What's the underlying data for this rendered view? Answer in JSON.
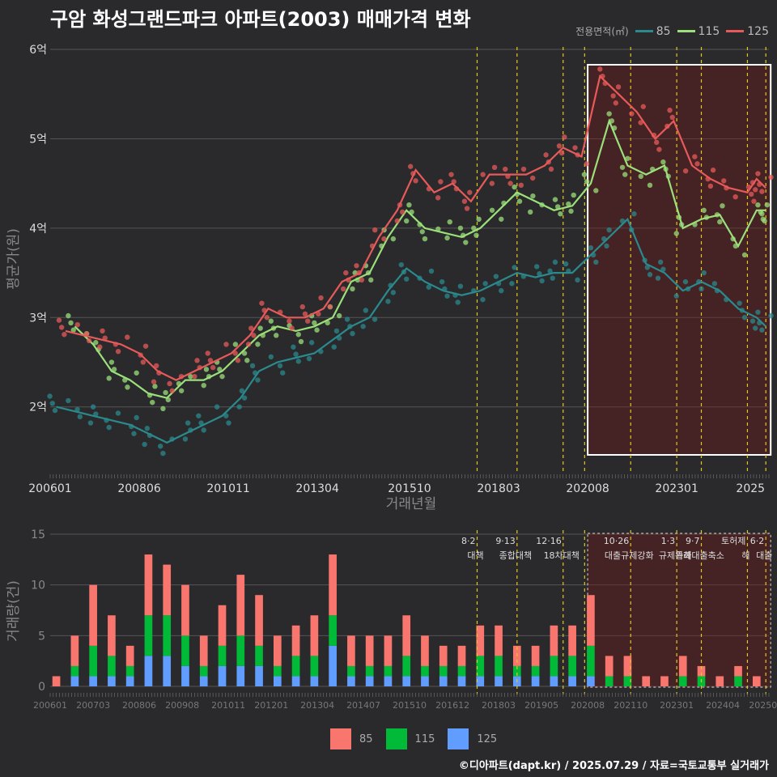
{
  "title": "구암 화성그랜드파크 아파트(2003) 매매가격 변화",
  "footer": "©디아파트(dapt.kr) / 2025.07.29 / 자료=국토교통부 실거래가",
  "colors": {
    "c85": "#2a8a8e",
    "c115": "#9be07a",
    "c125": "#e85a5a",
    "b85": "#f8766d",
    "b115": "#00ba38",
    "b125": "#619cff",
    "policy": "#e6c619",
    "bg": "#2a2a2c",
    "grid": "#555555"
  },
  "legend_top": {
    "label": "전용면적(㎡)",
    "items": [
      "85",
      "115",
      "125"
    ]
  },
  "legend_bottom": {
    "items": [
      "85",
      "115",
      "125"
    ]
  },
  "chart_data": [
    {
      "type": "line",
      "title": "",
      "xlabel": "거래년월",
      "ylabel": "평균가(원)",
      "x_ticks": [
        "200601",
        "200806",
        "201011",
        "201304",
        "201510",
        "201803",
        "202008",
        "202301",
        "2025"
      ],
      "y_ticks": [
        "2억",
        "3억",
        "4억",
        "5억",
        "6억"
      ],
      "ylim": [
        1.3,
        6.1
      ],
      "highlight_range": [
        "202008",
        "202506"
      ],
      "series": [
        {
          "name": "85",
          "points": [
            [
              "2006-03",
              2.0
            ],
            [
              "2006-09",
              1.95
            ],
            [
              "2007-03",
              1.9
            ],
            [
              "2007-09",
              1.85
            ],
            [
              "2008-03",
              1.8
            ],
            [
              "2008-09",
              1.7
            ],
            [
              "2009-03",
              1.6
            ],
            [
              "2009-09",
              1.7
            ],
            [
              "2010-03",
              1.8
            ],
            [
              "2010-09",
              1.9
            ],
            [
              "2011-03",
              2.1
            ],
            [
              "2011-09",
              2.4
            ],
            [
              "2012-03",
              2.5
            ],
            [
              "2012-09",
              2.55
            ],
            [
              "2013-03",
              2.6
            ],
            [
              "2013-09",
              2.75
            ],
            [
              "2014-03",
              2.9
            ],
            [
              "2014-09",
              3.0
            ],
            [
              "2015-03",
              3.3
            ],
            [
              "2015-09",
              3.55
            ],
            [
              "2016-03",
              3.4
            ],
            [
              "2016-09",
              3.3
            ],
            [
              "2017-03",
              3.25
            ],
            [
              "2017-09",
              3.3
            ],
            [
              "2018-03",
              3.4
            ],
            [
              "2018-09",
              3.5
            ],
            [
              "2019-03",
              3.45
            ],
            [
              "2019-09",
              3.5
            ],
            [
              "2020-03",
              3.5
            ],
            [
              "2020-09",
              3.7
            ],
            [
              "2021-03",
              3.9
            ],
            [
              "2021-09",
              4.1
            ],
            [
              "2022-03",
              3.6
            ],
            [
              "2022-09",
              3.5
            ],
            [
              "2023-03",
              3.3
            ],
            [
              "2023-09",
              3.4
            ],
            [
              "2024-03",
              3.3
            ],
            [
              "2024-09",
              3.1
            ],
            [
              "2025-03",
              3.0
            ],
            [
              "2025-06",
              2.9
            ]
          ]
        },
        {
          "name": "115",
          "points": [
            [
              "2006-09",
              2.9
            ],
            [
              "2007-03",
              2.7
            ],
            [
              "2007-09",
              2.4
            ],
            [
              "2008-03",
              2.3
            ],
            [
              "2008-09",
              2.15
            ],
            [
              "2009-03",
              2.1
            ],
            [
              "2009-09",
              2.3
            ],
            [
              "2010-03",
              2.3
            ],
            [
              "2010-09",
              2.4
            ],
            [
              "2011-03",
              2.6
            ],
            [
              "2011-09",
              2.8
            ],
            [
              "2012-03",
              2.9
            ],
            [
              "2012-09",
              2.85
            ],
            [
              "2013-03",
              2.9
            ],
            [
              "2013-09",
              3.0
            ],
            [
              "2014-03",
              3.4
            ],
            [
              "2014-09",
              3.5
            ],
            [
              "2015-03",
              3.9
            ],
            [
              "2015-09",
              4.2
            ],
            [
              "2016-03",
              4.0
            ],
            [
              "2016-09",
              3.95
            ],
            [
              "2017-03",
              3.9
            ],
            [
              "2017-09",
              4.0
            ],
            [
              "2018-03",
              4.2
            ],
            [
              "2018-09",
              4.4
            ],
            [
              "2019-03",
              4.3
            ],
            [
              "2019-09",
              4.2
            ],
            [
              "2020-03",
              4.25
            ],
            [
              "2020-09",
              4.5
            ],
            [
              "2021-03",
              5.2
            ],
            [
              "2021-09",
              4.7
            ],
            [
              "2022-03",
              4.6
            ],
            [
              "2022-09",
              4.7
            ],
            [
              "2023-03",
              4.0
            ],
            [
              "2023-09",
              4.1
            ],
            [
              "2024-03",
              4.15
            ],
            [
              "2024-09",
              3.8
            ],
            [
              "2025-03",
              4.2
            ],
            [
              "2025-06",
              4.2
            ]
          ]
        },
        {
          "name": "125",
          "points": [
            [
              "2006-06",
              2.85
            ],
            [
              "2006-12",
              2.8
            ],
            [
              "2007-06",
              2.75
            ],
            [
              "2007-12",
              2.7
            ],
            [
              "2008-06",
              2.6
            ],
            [
              "2008-12",
              2.4
            ],
            [
              "2009-06",
              2.3
            ],
            [
              "2009-12",
              2.4
            ],
            [
              "2010-06",
              2.5
            ],
            [
              "2010-12",
              2.6
            ],
            [
              "2011-06",
              2.8
            ],
            [
              "2011-12",
              3.1
            ],
            [
              "2012-06",
              3.0
            ],
            [
              "2012-12",
              3.0
            ],
            [
              "2013-06",
              3.1
            ],
            [
              "2013-12",
              3.4
            ],
            [
              "2014-06",
              3.5
            ],
            [
              "2014-12",
              3.9
            ],
            [
              "2015-06",
              4.2
            ],
            [
              "2015-12",
              4.65
            ],
            [
              "2016-06",
              4.4
            ],
            [
              "2016-12",
              4.5
            ],
            [
              "2017-06",
              4.3
            ],
            [
              "2017-12",
              4.6
            ],
            [
              "2018-06",
              4.6
            ],
            [
              "2018-12",
              4.6
            ],
            [
              "2019-06",
              4.7
            ],
            [
              "2019-12",
              4.9
            ],
            [
              "2020-06",
              4.8
            ],
            [
              "2020-12",
              5.7
            ],
            [
              "2021-06",
              5.5
            ],
            [
              "2021-12",
              5.3
            ],
            [
              "2022-06",
              5.0
            ],
            [
              "2022-12",
              5.2
            ],
            [
              "2023-06",
              4.7
            ],
            [
              "2023-12",
              4.55
            ],
            [
              "2024-06",
              4.45
            ],
            [
              "2024-12",
              4.4
            ],
            [
              "2025-03",
              4.55
            ],
            [
              "2025-06",
              4.45
            ]
          ]
        }
      ]
    },
    {
      "type": "bar",
      "title": "",
      "xlabel": "",
      "ylabel": "거래량(건)",
      "x_ticks": [
        "200601",
        "200703",
        "200806",
        "200908",
        "201011",
        "201201",
        "201304",
        "201407",
        "201510",
        "201612",
        "201803",
        "201905",
        "202008",
        "202110",
        "202301",
        "202404",
        "202506"
      ],
      "y_ticks": [
        "0",
        "5",
        "10",
        "15"
      ],
      "ylim": [
        0,
        15
      ],
      "stacked": true,
      "series_names": [
        "85",
        "115",
        "125"
      ],
      "description_of_bars": "monthly stacked transaction counts (approximate, read at quarterly resolution)",
      "months": [
        "2006-03",
        "2006-09",
        "2007-03",
        "2007-09",
        "2008-03",
        "2008-09",
        "2009-03",
        "2009-09",
        "2010-03",
        "2010-09",
        "2011-03",
        "2011-09",
        "2012-03",
        "2012-09",
        "2013-03",
        "2013-09",
        "2014-03",
        "2014-09",
        "2015-03",
        "2015-09",
        "2016-03",
        "2016-09",
        "2017-03",
        "2017-09",
        "2018-03",
        "2018-09",
        "2019-03",
        "2019-09",
        "2020-03",
        "2020-09",
        "2021-03",
        "2021-09",
        "2022-03",
        "2022-09",
        "2023-03",
        "2023-09",
        "2024-03",
        "2024-09",
        "2025-03"
      ],
      "values_85": [
        1,
        3,
        6,
        4,
        2,
        6,
        5,
        5,
        3,
        4,
        6,
        5,
        3,
        3,
        4,
        6,
        3,
        3,
        3,
        4,
        3,
        2,
        2,
        3,
        3,
        2,
        2,
        3,
        3,
        5,
        2,
        2,
        1,
        1,
        2,
        1,
        1,
        1,
        1
      ],
      "values_115": [
        0,
        1,
        3,
        2,
        1,
        4,
        4,
        3,
        1,
        2,
        3,
        2,
        1,
        2,
        2,
        3,
        1,
        1,
        1,
        2,
        1,
        1,
        1,
        2,
        2,
        1,
        1,
        2,
        2,
        3,
        1,
        1,
        0,
        0,
        1,
        1,
        0,
        1,
        0
      ],
      "values_125": [
        0,
        1,
        1,
        1,
        1,
        3,
        3,
        2,
        1,
        2,
        2,
        2,
        1,
        1,
        1,
        4,
        1,
        1,
        1,
        1,
        1,
        1,
        1,
        1,
        1,
        1,
        1,
        1,
        1,
        1,
        0,
        0,
        0,
        0,
        0,
        0,
        0,
        0,
        0
      ],
      "highlight_range": [
        "202008",
        "202506"
      ]
    }
  ],
  "policies": [
    {
      "date": "2017-08",
      "label": "8·2 대책"
    },
    {
      "date": "2018-09",
      "label": "9·13 종합대책"
    },
    {
      "date": "2019-12",
      "label": "12·16 18차대책"
    },
    {
      "date": "2020-07",
      "label": ""
    },
    {
      "date": "2021-10",
      "label": "10·26 대출규제강화"
    },
    {
      "date": "2023-01",
      "label": "1·3 규제완화"
    },
    {
      "date": "2023-09",
      "label": "9·7 특례대출축소"
    },
    {
      "date": "2024-12",
      "label": "토허제 해"
    },
    {
      "date": "2025-06",
      "label": "6·2 대출"
    }
  ]
}
